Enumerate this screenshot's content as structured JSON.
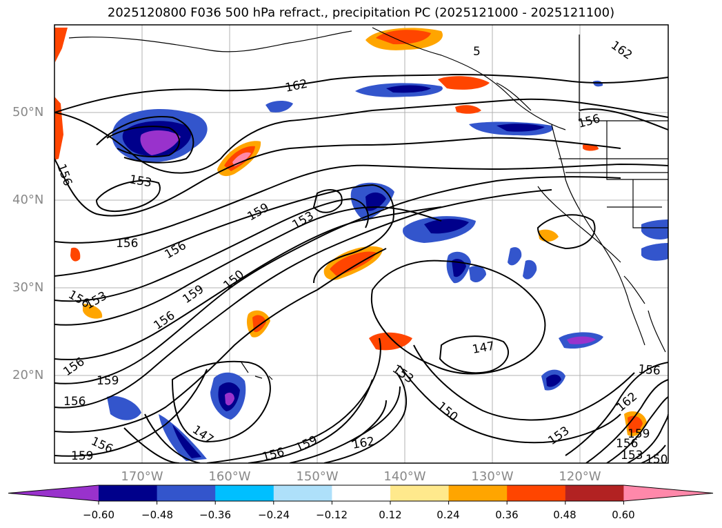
{
  "title": "2025120800 F036 500 hPa refract., precipitation PC (2025121000 - 2025121100)",
  "lat_labels": [
    "50°N",
    "40°N",
    "30°N",
    "20°N"
  ],
  "lon_labels": [
    "170°W",
    "160°W",
    "150°W",
    "140°W",
    "130°W",
    "120°W"
  ],
  "colorbar": {
    "colors": [
      "#9932cc",
      "#00008b",
      "#3355cc",
      "#00bfff",
      "#aee0fa",
      "#ffffff",
      "#ffe98c",
      "#ffa500",
      "#ff4500",
      "#b22222",
      "#ff88aa"
    ],
    "tick_labels": [
      "−0.60",
      "−0.48",
      "−0.36",
      "−0.24",
      "−0.12",
      "0.12",
      "0.24",
      "0.36",
      "0.48",
      "0.60"
    ]
  },
  "contour_labels": [
    "162",
    "162",
    "156",
    "156",
    "153",
    "156",
    "156",
    "159",
    "153",
    "156",
    "159",
    "150",
    "156",
    "153",
    "156",
    "159",
    "156",
    "147",
    "156",
    "159",
    "156",
    "159",
    "153",
    "147",
    "150",
    "162",
    "156",
    "162",
    "153",
    "159",
    "156",
    "153",
    "150",
    "5"
  ],
  "chart_data": {
    "type": "contour-map",
    "title": "2025120800 F036 500 hPa refract., precipitation PC (2025121000 - 2025121100)",
    "lat_range": [
      10,
      60
    ],
    "lon_range": [
      -180,
      -110
    ],
    "contour_values": [
      147,
      150,
      153,
      156,
      159,
      162
    ],
    "fill_levels": [
      -0.6,
      -0.48,
      -0.36,
      -0.24,
      -0.12,
      0.12,
      0.24,
      0.36,
      0.48,
      0.6
    ]
  }
}
